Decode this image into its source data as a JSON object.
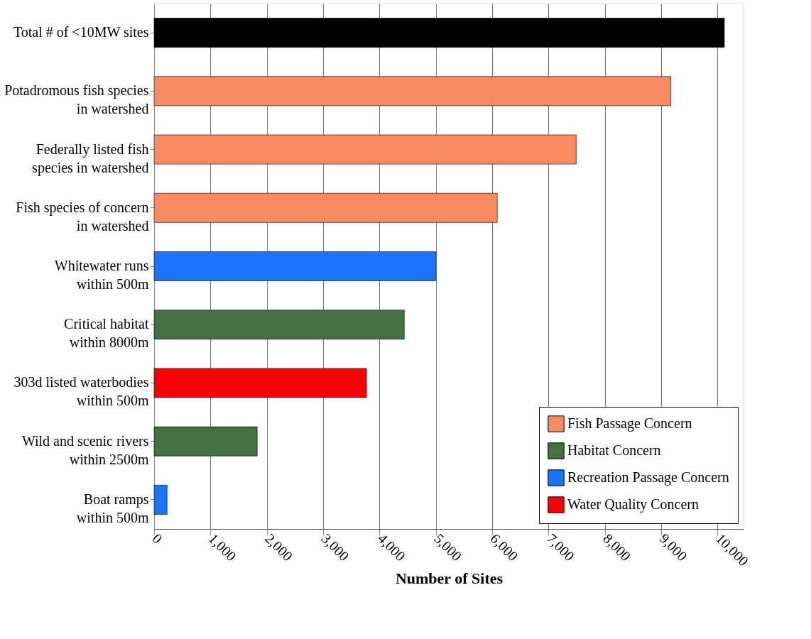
{
  "chart_data": {
    "type": "bar",
    "orientation": "horizontal",
    "xlabel": "Number of Sites",
    "categories": [
      "Total # of <10MW sites",
      "Potadromous fish species\nin watershed",
      "Federally listed fish\nspecies in watershed",
      "Fish species of concern\nin watershed",
      "Whitewater runs\nwithin 500m",
      "Critical habitat\nwithin 8000m",
      "303d listed waterbodies\nwithin 500m",
      "Wild and scenic rivers\nwithin 2500m",
      "Boat ramps\nwithin 500m"
    ],
    "series": [
      {
        "color": "#000000",
        "values": [
          10120,
          null,
          null,
          null,
          null,
          null,
          null,
          null,
          null
        ]
      },
      {
        "name": "Fish Passage Concern",
        "color": "#f98a62",
        "values": [
          null,
          9170,
          7490,
          6090,
          null,
          null,
          null,
          null,
          null
        ]
      },
      {
        "name": "Habitat Concern",
        "color": "#457044",
        "values": [
          null,
          null,
          null,
          null,
          null,
          4440,
          null,
          1830,
          null
        ]
      },
      {
        "name": "Recreation Passage Concern",
        "color": "#1a75fc",
        "values": [
          null,
          null,
          null,
          null,
          5000,
          null,
          null,
          null,
          230
        ]
      },
      {
        "name": "Water Quality Concern",
        "color": "#fb0007",
        "values": [
          null,
          null,
          null,
          null,
          null,
          null,
          3770,
          null,
          null
        ]
      }
    ],
    "xlim": [
      0,
      10460
    ],
    "xticks": [
      0,
      {
        "value": 1000,
        "label": "1,000"
      },
      {
        "value": 2000,
        "label": "2,000"
      },
      {
        "value": 3000,
        "label": "3,000"
      },
      {
        "value": 4000,
        "label": "4,000"
      },
      {
        "value": 5000,
        "label": "5,000"
      },
      {
        "value": 6000,
        "label": "6,000"
      },
      {
        "value": 7000,
        "label": "7,000"
      },
      {
        "value": 8000,
        "label": "8,000"
      },
      {
        "value": 9000,
        "label": "9,000"
      },
      {
        "value": 10000,
        "label": "10,000"
      }
    ],
    "grid": "x",
    "legend": "bottom right"
  }
}
